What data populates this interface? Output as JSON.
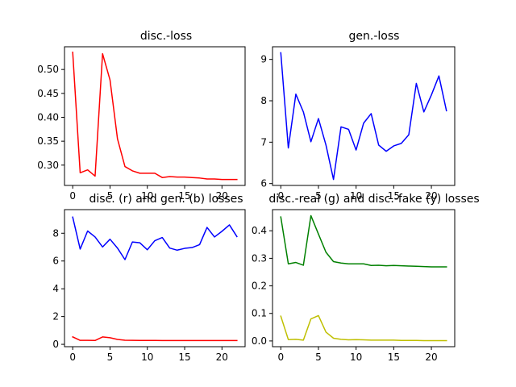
{
  "chart_data": [
    {
      "type": "line",
      "title": "disc.-loss",
      "xlabel": "",
      "ylabel": "",
      "x": [
        0,
        1,
        2,
        3,
        4,
        5,
        6,
        7,
        8,
        9,
        10,
        11,
        12,
        13,
        14,
        15,
        16,
        17,
        18,
        19,
        20,
        21,
        22
      ],
      "xlim": [
        -1.1,
        23.1
      ],
      "ylim": [
        0.2575,
        0.5475
      ],
      "xticks": [
        0,
        5,
        10,
        15,
        20
      ],
      "yticks": [
        0.3,
        0.35,
        0.4,
        0.45,
        0.5
      ],
      "ytick_labels": [
        "0.30",
        "0.35",
        "0.40",
        "0.45",
        "0.50"
      ],
      "grid": false,
      "series": [
        {
          "color": "#ff0000",
          "values": [
            0.536,
            0.284,
            0.29,
            0.277,
            0.533,
            0.478,
            0.355,
            0.297,
            0.288,
            0.283,
            0.283,
            0.283,
            0.274,
            0.276,
            0.275,
            0.275,
            0.274,
            0.273,
            0.271,
            0.271,
            0.27,
            0.27,
            0.27
          ]
        }
      ]
    },
    {
      "type": "line",
      "title": "gen.-loss",
      "xlabel": "",
      "ylabel": "",
      "x": [
        0,
        1,
        2,
        3,
        4,
        5,
        6,
        7,
        8,
        9,
        10,
        11,
        12,
        13,
        14,
        15,
        16,
        17,
        18,
        19,
        20,
        21,
        22
      ],
      "xlim": [
        -1.1,
        23.1
      ],
      "ylim": [
        5.955,
        9.305
      ],
      "xticks": [
        0,
        5,
        10,
        15,
        20
      ],
      "yticks": [
        6,
        7,
        8,
        9
      ],
      "ytick_labels": [
        "6",
        "7",
        "8",
        "9"
      ],
      "grid": false,
      "series": [
        {
          "color": "#0000ff",
          "values": [
            9.16,
            6.86,
            8.16,
            7.73,
            7.01,
            7.57,
            6.93,
            6.1,
            7.37,
            7.31,
            6.81,
            7.46,
            7.69,
            6.93,
            6.78,
            6.91,
            6.97,
            7.18,
            8.42,
            7.73,
            8.14,
            8.6,
            7.76
          ]
        }
      ]
    },
    {
      "type": "line",
      "title": "disc. (r) and gen. (b) losses",
      "xlabel": "",
      "ylabel": "",
      "x": [
        0,
        1,
        2,
        3,
        4,
        5,
        6,
        7,
        8,
        9,
        10,
        11,
        12,
        13,
        14,
        15,
        16,
        17,
        18,
        19,
        20,
        21,
        22
      ],
      "xlim": [
        -1.1,
        23.1
      ],
      "ylim": [
        -0.17,
        9.7
      ],
      "xticks": [
        0,
        5,
        10,
        15,
        20
      ],
      "yticks": [
        0,
        2,
        4,
        6,
        8
      ],
      "ytick_labels": [
        "0",
        "2",
        "4",
        "6",
        "8"
      ],
      "grid": false,
      "series": [
        {
          "color": "#0000ff",
          "values": [
            9.16,
            6.86,
            8.16,
            7.73,
            7.01,
            7.57,
            6.93,
            6.1,
            7.37,
            7.31,
            6.81,
            7.46,
            7.69,
            6.93,
            6.78,
            6.91,
            6.97,
            7.18,
            8.42,
            7.73,
            8.14,
            8.6,
            7.76
          ]
        },
        {
          "color": "#ff0000",
          "values": [
            0.536,
            0.284,
            0.29,
            0.277,
            0.533,
            0.478,
            0.355,
            0.297,
            0.288,
            0.283,
            0.283,
            0.283,
            0.274,
            0.276,
            0.275,
            0.275,
            0.274,
            0.273,
            0.271,
            0.271,
            0.27,
            0.27,
            0.27
          ]
        }
      ]
    },
    {
      "type": "line",
      "title": "disc.-real (g) and disc.-fake (y) losses",
      "xlabel": "",
      "ylabel": "",
      "x": [
        0,
        1,
        2,
        3,
        4,
        5,
        6,
        7,
        8,
        9,
        10,
        11,
        12,
        13,
        14,
        15,
        16,
        17,
        18,
        19,
        20,
        21,
        22
      ],
      "xlim": [
        -1.1,
        23.1
      ],
      "ylim": [
        -0.0208,
        0.4768
      ],
      "xticks": [
        0,
        5,
        10,
        15,
        20
      ],
      "yticks": [
        0.0,
        0.1,
        0.2,
        0.3,
        0.4
      ],
      "ytick_labels": [
        "0.0",
        "0.1",
        "0.2",
        "0.3",
        "0.4"
      ],
      "grid": false,
      "series": [
        {
          "color": "#008000",
          "values": [
            0.45,
            0.28,
            0.285,
            0.275,
            0.455,
            0.388,
            0.322,
            0.288,
            0.283,
            0.28,
            0.28,
            0.28,
            0.274,
            0.275,
            0.273,
            0.274,
            0.273,
            0.272,
            0.271,
            0.27,
            0.269,
            0.269,
            0.269
          ]
        },
        {
          "color": "#bfbf00",
          "values": [
            0.09,
            0.005,
            0.006,
            0.003,
            0.08,
            0.092,
            0.032,
            0.01,
            0.006,
            0.004,
            0.005,
            0.004,
            0.003,
            0.003,
            0.003,
            0.003,
            0.002,
            0.002,
            0.002,
            0.001,
            0.001,
            0.001,
            0.001
          ]
        }
      ]
    }
  ]
}
